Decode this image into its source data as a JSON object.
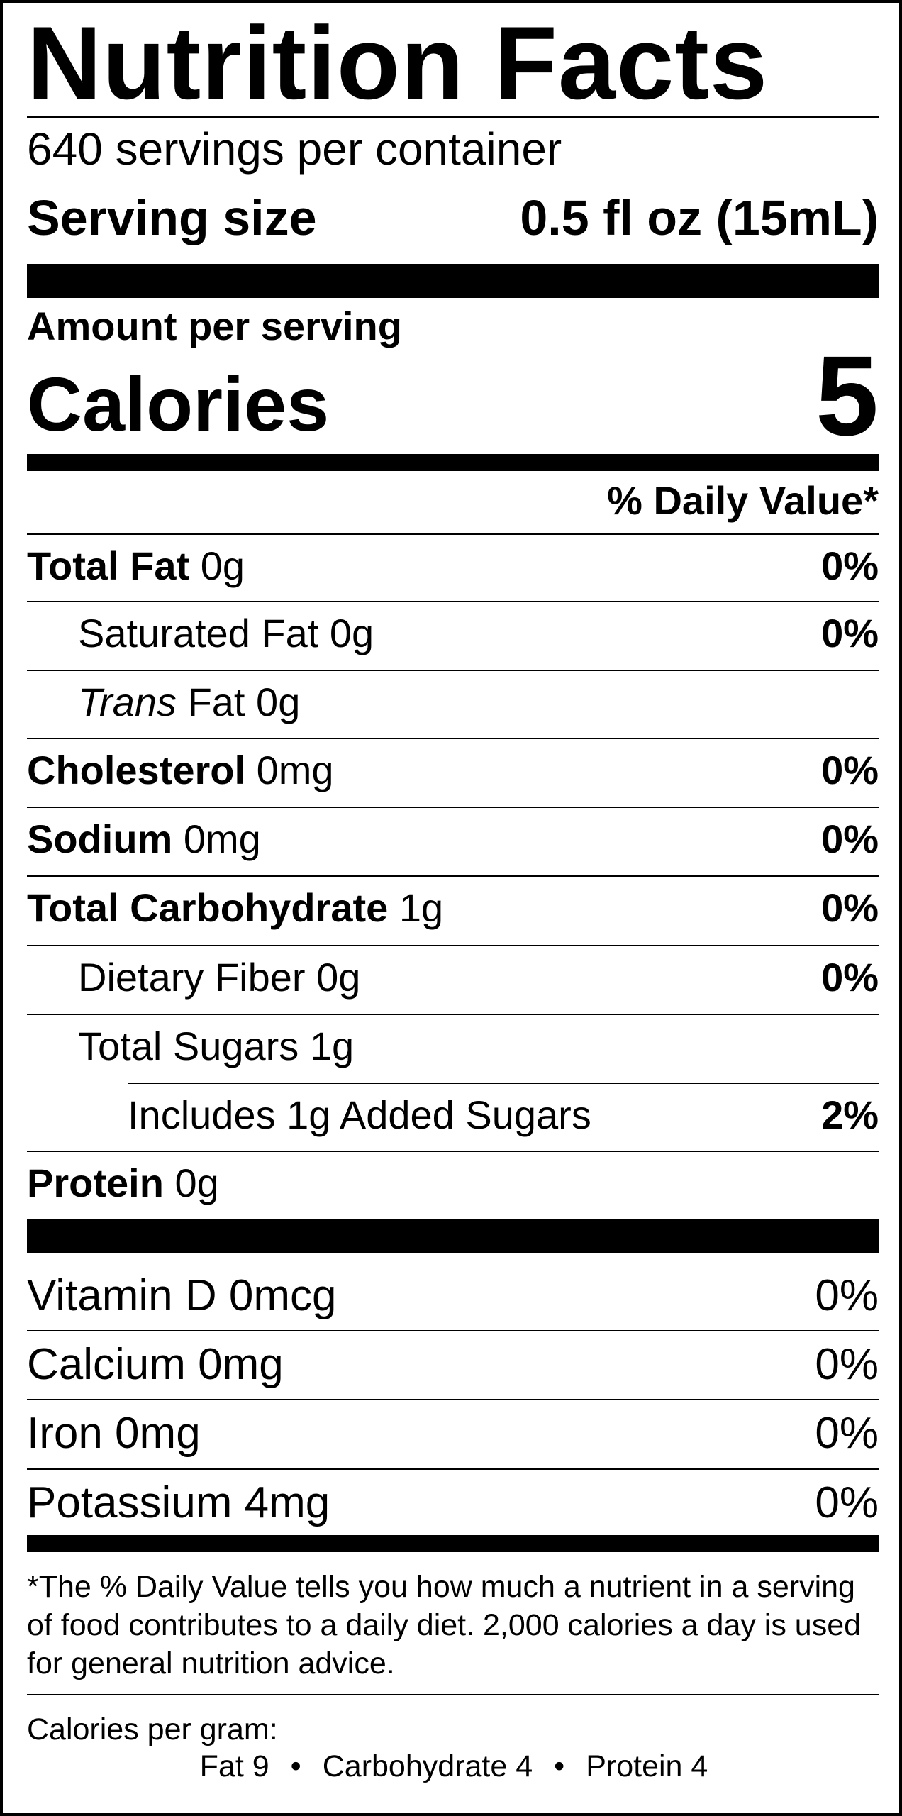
{
  "label": {
    "title": "Nutrition Facts",
    "servings_per_container": "640 servings per container",
    "serving_size_label": "Serving size",
    "serving_size_value": "0.5 fl oz (15mL)",
    "amount_per_serving": "Amount per serving",
    "calories_label": "Calories",
    "calories_value": "5",
    "daily_value_header": "% Daily Value*"
  },
  "nutrients": {
    "total_fat": {
      "name": "Total Fat",
      "amount": "0g",
      "dv": "0%"
    },
    "saturated_fat": {
      "name": "Saturated Fat",
      "amount": "0g",
      "dv": "0%"
    },
    "trans_fat": {
      "name_italic": "Trans",
      "name": "Fat",
      "amount": "0g"
    },
    "cholesterol": {
      "name": "Cholesterol",
      "amount": "0mg",
      "dv": "0%"
    },
    "sodium": {
      "name": "Sodium",
      "amount": "0mg",
      "dv": "0%"
    },
    "total_carbohydrate": {
      "name": "Total Carbohydrate",
      "amount": "1g",
      "dv": "0%"
    },
    "dietary_fiber": {
      "name": "Dietary Fiber",
      "amount": "0g",
      "dv": "0%"
    },
    "total_sugars": {
      "name": "Total Sugars",
      "amount": "1g"
    },
    "added_sugars": {
      "text": "Includes 1g Added Sugars",
      "dv": "2%"
    },
    "protein": {
      "name": "Protein",
      "amount": "0g"
    }
  },
  "vitamins": {
    "vitamin_d": {
      "text": "Vitamin D 0mcg",
      "dv": "0%"
    },
    "calcium": {
      "text": "Calcium 0mg",
      "dv": "0%"
    },
    "iron": {
      "text": "Iron 0mg",
      "dv": "0%"
    },
    "potassium": {
      "text": "Potassium 4mg",
      "dv": "0%"
    }
  },
  "footnote": "*The % Daily Value tells you how much a nutrient in a serving of food contributes to a daily diet. 2,000 calories a day is used for general nutrition advice.",
  "calories_per_gram": {
    "title": "Calories per gram:",
    "fat": "Fat 9",
    "carbohydrate": "Carbohydrate 4",
    "protein": "Protein 4",
    "separator": "•"
  }
}
